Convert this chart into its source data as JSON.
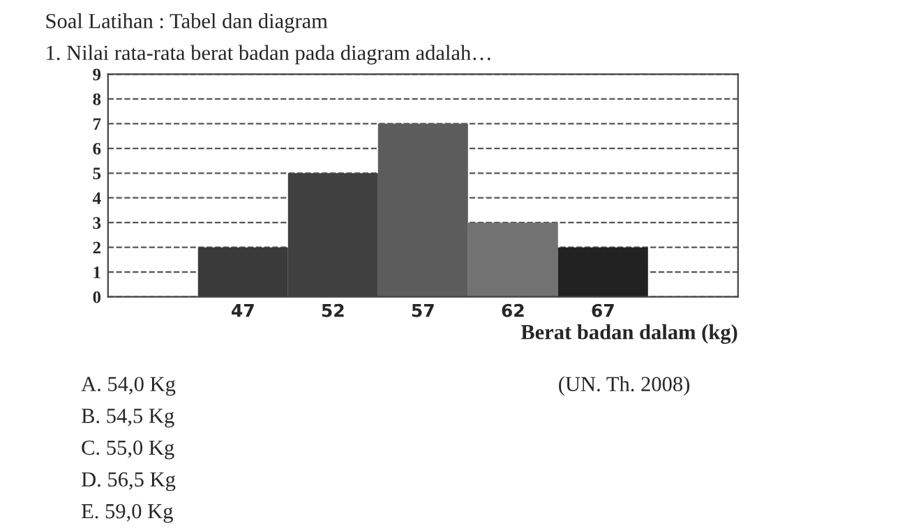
{
  "chart_data": {
    "type": "bar",
    "title": "1. Nilai rata-rata berat badan pada diagram adalah…",
    "subtitle": "Soal Latihan : Tabel dan diagram",
    "xlabel": "Berat badan dalam (kg)",
    "categories": [
      "47",
      "52",
      "57",
      "62",
      "67"
    ],
    "values": [
      2,
      5,
      7,
      3,
      2
    ],
    "colors": [
      "#3a3a3a",
      "#404040",
      "#5c5c5c",
      "#727272",
      "#222222"
    ],
    "ylim": [
      0,
      9
    ],
    "yticks": [
      0,
      1,
      2,
      3,
      4,
      5,
      6,
      7,
      8,
      9
    ],
    "grid": "y",
    "line_style": "dashed",
    "annotations": [
      "(UN. Th. 2008)",
      "A. 54,0 Kg",
      "B. 54,5 Kg",
      "C. 55,0 Kg",
      "D. 56,5 Kg",
      "E. 59,0 Kg"
    ]
  }
}
